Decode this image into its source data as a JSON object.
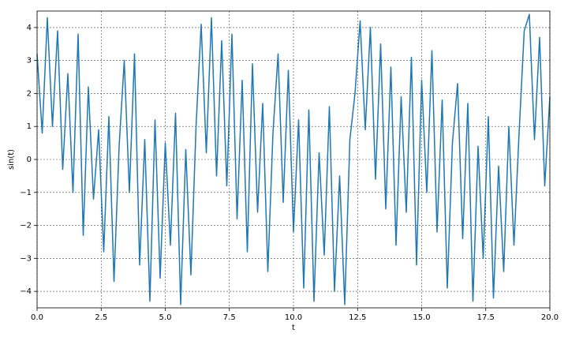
{
  "chart_data": {
    "type": "line",
    "x_label": "t",
    "y_label": "sin(t)",
    "x": [
      0,
      0.2,
      0.4,
      0.6,
      0.8,
      1.0,
      1.2,
      1.4,
      1.6,
      1.8,
      2.0,
      2.2,
      2.4,
      2.6,
      2.8,
      3.0,
      3.2,
      3.4,
      3.6,
      3.8,
      4.0,
      4.2,
      4.4,
      4.6,
      4.8,
      5.0,
      5.2,
      5.4,
      5.6,
      5.8,
      6.0,
      6.2,
      6.4,
      6.6,
      6.8,
      7.0,
      7.2,
      7.4,
      7.6,
      7.8,
      8.0,
      8.2,
      8.4,
      8.6,
      8.8,
      9.0,
      9.2,
      9.4,
      9.6,
      9.8,
      10.0,
      10.2,
      10.4,
      10.6,
      10.8,
      11.0,
      11.2,
      11.4,
      11.6,
      11.8,
      12.0,
      12.2,
      12.4,
      12.6,
      12.8,
      13.0,
      13.2,
      13.4,
      13.6,
      13.8,
      14.0,
      14.2,
      14.4,
      14.6,
      14.8,
      15.0,
      15.2,
      15.4,
      15.6,
      15.8,
      16.0,
      16.2,
      16.4,
      16.6,
      16.8,
      17.0,
      17.2,
      17.4,
      17.6,
      17.8,
      18.0,
      18.2,
      18.4,
      18.6,
      18.8,
      19.0,
      19.2,
      19.4,
      19.6,
      19.8,
      20.0
    ],
    "series": [
      {
        "color": "#1f77b4",
        "values": [
          3.2,
          0.8,
          4.3,
          1.0,
          3.9,
          -0.3,
          2.6,
          -1.0,
          3.8,
          -2.3,
          2.2,
          -1.2,
          0.9,
          -2.8,
          1.3,
          -3.7,
          0.4,
          3.0,
          -1.0,
          3.2,
          -3.2,
          0.6,
          -4.3,
          1.2,
          -3.6,
          0.5,
          -2.6,
          1.4,
          -4.4,
          0.3,
          -3.5,
          1.0,
          4.1,
          0.2,
          4.3,
          -0.5,
          3.6,
          -0.8,
          3.8,
          -1.8,
          2.4,
          -2.8,
          2.9,
          -1.6,
          1.7,
          -3.4,
          0.8,
          3.2,
          -1.3,
          2.7,
          -2.2,
          1.2,
          -3.9,
          1.5,
          -4.3,
          0.2,
          -2.9,
          1.6,
          -4.0,
          -0.5,
          -4.4,
          0.6,
          2.0,
          4.2,
          0.9,
          4.0,
          -0.6,
          3.5,
          -1.5,
          2.8,
          -2.6,
          1.9,
          -1.6,
          3.1,
          -3.2,
          2.4,
          -1.0,
          3.3,
          -2.2,
          1.8,
          -3.9,
          0.5,
          2.3,
          -2.4,
          1.7,
          -4.3,
          0.4,
          -3.0,
          1.3,
          -4.2,
          -0.2,
          -3.4,
          1.0,
          -2.6,
          0.8,
          3.9,
          4.4,
          0.6,
          3.7,
          -0.8,
          1.9
        ]
      }
    ],
    "xlim": [
      0,
      20
    ],
    "ylim": [
      -4.5,
      4.5
    ],
    "xticks": [
      {
        "value": 0,
        "label": "0.0"
      },
      2.5,
      {
        "value": 5,
        "label": "5.0"
      },
      7.5,
      {
        "value": 10,
        "label": "10.0"
      },
      12.5,
      {
        "value": 15,
        "label": "15.0"
      },
      17.5,
      {
        "value": 20,
        "label": "20.0"
      }
    ],
    "yticks": [
      {
        "value": -4,
        "label": "−4"
      },
      {
        "value": -3,
        "label": "−3"
      },
      {
        "value": -2,
        "label": "−2"
      },
      {
        "value": -1,
        "label": "−1"
      },
      0,
      1,
      2,
      3,
      4
    ],
    "grid": true
  }
}
